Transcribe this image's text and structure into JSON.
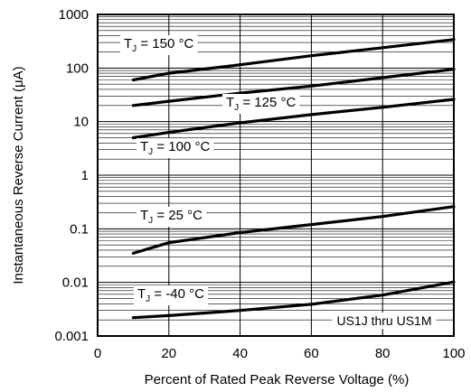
{
  "chart_data": {
    "type": "line",
    "xlabel": "Percent of Rated Peak Reverse Voltage (%)",
    "ylabel": "Instantaneous Reverse Current (μA)",
    "xlim": [
      0,
      100
    ],
    "ylim": [
      0.001,
      1000
    ],
    "y_scale": "log",
    "grid": true,
    "x_ticks": [
      0,
      20,
      40,
      60,
      80,
      100
    ],
    "x_tick_labels": [
      "0",
      "20",
      "40",
      "60",
      "80",
      "100"
    ],
    "y_ticks": [
      0.001,
      0.01,
      0.1,
      1,
      10,
      100,
      1000
    ],
    "y_tick_labels": [
      "0.001",
      "0.01",
      "0.1",
      "1",
      "10",
      "100",
      "1000"
    ],
    "annotation": "US1J thru US1M",
    "series": [
      {
        "name": "TJ = 150 °C",
        "label_main": "T",
        "label_sub": "J",
        "label_rest": " = 150 °C",
        "x": [
          10,
          20,
          40,
          60,
          80,
          100
        ],
        "y": [
          60,
          80,
          115,
          170,
          240,
          340
        ]
      },
      {
        "name": "TJ = 125 °C",
        "label_main": "T",
        "label_sub": "J",
        "label_rest": " = 125 °C",
        "x": [
          10,
          20,
          40,
          60,
          80,
          100
        ],
        "y": [
          20,
          24,
          34,
          46,
          66,
          95
        ]
      },
      {
        "name": "TJ = 100 °C",
        "label_main": "T",
        "label_sub": "J",
        "label_rest": " = 100 °C",
        "x": [
          10,
          20,
          40,
          60,
          80,
          100
        ],
        "y": [
          5,
          6.3,
          9.5,
          13.5,
          18.5,
          26
        ]
      },
      {
        "name": "TJ = 25 °C",
        "label_main": "T",
        "label_sub": "J",
        "label_rest": " = 25 °C",
        "x": [
          10,
          20,
          40,
          60,
          80,
          100
        ],
        "y": [
          0.035,
          0.055,
          0.085,
          0.12,
          0.17,
          0.26
        ]
      },
      {
        "name": "TJ = -40 °C",
        "label_main": "T",
        "label_sub": "J",
        "label_rest": " = -40 °C",
        "x": [
          10,
          20,
          40,
          60,
          80,
          100
        ],
        "y": [
          0.0022,
          0.0024,
          0.003,
          0.0039,
          0.0058,
          0.0102
        ]
      }
    ]
  }
}
